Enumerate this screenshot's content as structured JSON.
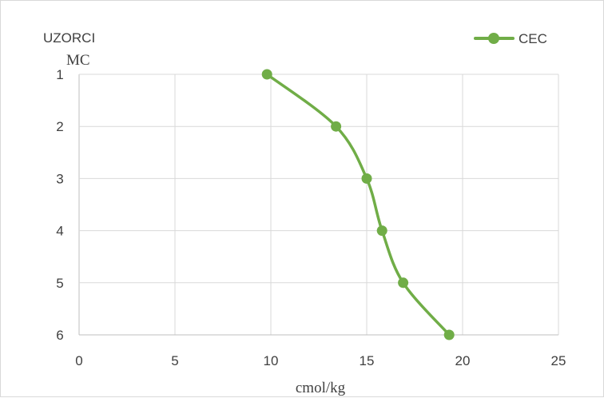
{
  "chart_data": {
    "type": "line",
    "title": "",
    "xlabel": "cmol/kg",
    "ylabel_lines": [
      "UZORCI",
      "MC"
    ],
    "xlim": [
      0,
      25
    ],
    "ylim": [
      1,
      6
    ],
    "y_inverted": true,
    "x_ticks": [
      "0",
      "5",
      "10",
      "15",
      "20",
      "25"
    ],
    "y_ticks": [
      "1",
      "2",
      "3",
      "4",
      "5",
      "6"
    ],
    "grid": true,
    "legend_position": "top-right",
    "series": [
      {
        "name": "CEC",
        "color": "#70ad47",
        "marker": "circle",
        "smooth": true,
        "points": [
          {
            "x": 9.8,
            "y": 1
          },
          {
            "x": 13.4,
            "y": 2
          },
          {
            "x": 15.0,
            "y": 3
          },
          {
            "x": 15.8,
            "y": 4
          },
          {
            "x": 16.9,
            "y": 5
          },
          {
            "x": 19.3,
            "y": 6
          }
        ]
      }
    ]
  }
}
